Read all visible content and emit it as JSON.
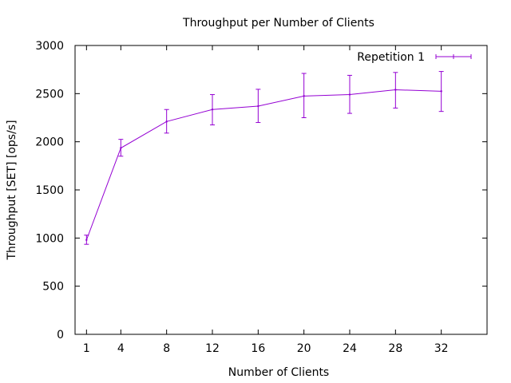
{
  "chart_data": {
    "type": "line",
    "title": "Throughput per Number of Clients",
    "xlabel": "Number of Clients",
    "ylabel": "Throughput [SET] [ops/s]",
    "xlim": [
      0,
      36
    ],
    "ylim": [
      0,
      3000
    ],
    "xticks": [
      1,
      4,
      8,
      12,
      16,
      20,
      24,
      28,
      32
    ],
    "yticks": [
      0,
      500,
      1000,
      1500,
      2000,
      2500,
      3000
    ],
    "grid": false,
    "legend_position": "top-right",
    "series": [
      {
        "name": "Repetition 1",
        "color": "#9400d3",
        "x": [
          1,
          4,
          8,
          12,
          16,
          20,
          24,
          28,
          32
        ],
        "y": [
          980,
          1935,
          2210,
          2335,
          2370,
          2475,
          2490,
          2540,
          2525
        ],
        "err_low": [
          935,
          1850,
          2090,
          2175,
          2200,
          2250,
          2295,
          2350,
          2315
        ],
        "err_high": [
          1030,
          2025,
          2335,
          2490,
          2545,
          2710,
          2690,
          2720,
          2730
        ]
      }
    ]
  }
}
